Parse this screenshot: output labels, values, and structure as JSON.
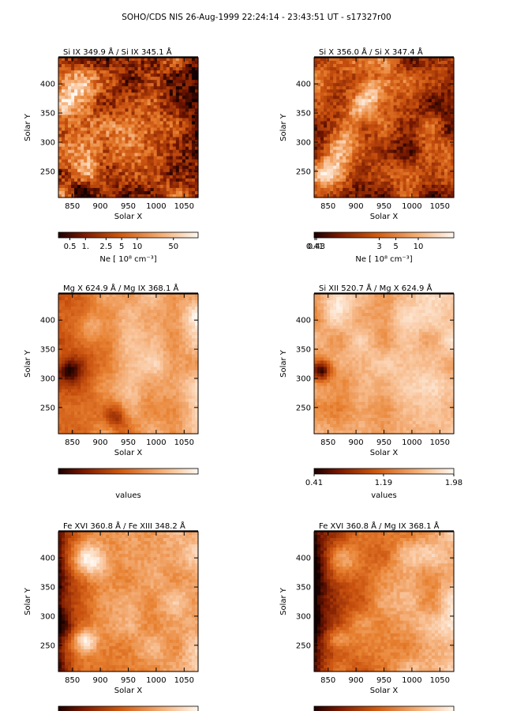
{
  "title": "SOHO/CDS NIS  26-Aug-1999 22:24:14 - 23:43:51 UT - s17327r00",
  "colors": {
    "map_dark": "#220000",
    "map_mid": "#d55e10",
    "map_light": "#fff4ea"
  },
  "chart_data": [
    {
      "type": "heatmap",
      "title": "Si IX  349.9 Å / Si IX  345.1 Å",
      "xlabel": "Solar X",
      "ylabel": "Solar Y",
      "xlim": [
        825,
        1075
      ],
      "ylim": [
        205,
        445
      ],
      "xticks": [
        850,
        900,
        950,
        1000,
        1050
      ],
      "yticks": [
        250,
        300,
        350,
        400
      ],
      "colorbar": {
        "label": "Ne  [ 10⁸ cm⁻³]",
        "log": true,
        "range": [
          0.3,
          150
        ],
        "ticks": [
          0.5,
          1,
          2.5,
          5,
          10,
          50
        ],
        "tick_labels": [
          "0.5",
          "1.",
          "2.5",
          "5",
          "10",
          "50"
        ]
      }
    },
    {
      "type": "heatmap",
      "title": "Si X  356.0 Å / Si X  347.4 Å",
      "xlabel": "Solar X",
      "ylabel": "Solar Y",
      "xlim": [
        825,
        1075
      ],
      "ylim": [
        205,
        445
      ],
      "xticks": [
        850,
        900,
        950,
        1000,
        1050
      ],
      "yticks": [
        250,
        300,
        350,
        400
      ],
      "colorbar": {
        "label": "Ne  [ 10⁸ cm⁻³]",
        "log": true,
        "range": [
          0.4,
          30
        ],
        "ticks": [
          0.41,
          0.43,
          3,
          5,
          10
        ],
        "tick_labels": [
          "0.41",
          "0.43",
          "3",
          "5",
          "10"
        ]
      }
    },
    {
      "type": "heatmap",
      "title": "Mg X  624.9 Å / Mg IX  368.1 Å",
      "xlabel": "Solar X",
      "ylabel": "Solar Y",
      "xlim": [
        825,
        1075
      ],
      "ylim": [
        205,
        445
      ],
      "xticks": [
        850,
        900,
        950,
        1000,
        1050
      ],
      "yticks": [
        250,
        300,
        350,
        400
      ],
      "colorbar": {
        "label": "values",
        "log": false,
        "ticks": [],
        "tick_labels": []
      }
    },
    {
      "type": "heatmap",
      "title": "Si XII  520.7 Å / Mg X  624.9 Å",
      "xlabel": "Solar X",
      "ylabel": "Solar Y",
      "xlim": [
        825,
        1075
      ],
      "ylim": [
        205,
        445
      ],
      "xticks": [
        850,
        900,
        950,
        1000,
        1050
      ],
      "yticks": [
        250,
        300,
        350,
        400
      ],
      "colorbar": {
        "label": "values",
        "log": false,
        "range": [
          0.41,
          1.98
        ],
        "ticks": [
          0.41,
          1.19,
          1.98
        ],
        "tick_labels": [
          "0.41",
          "1.19",
          "1.98"
        ]
      }
    },
    {
      "type": "heatmap",
      "title": "Fe XVI  360.8 Å / Fe XIII  348.2 Å",
      "xlabel": "Solar X",
      "ylabel": "Solar Y",
      "xlim": [
        825,
        1075
      ],
      "ylim": [
        205,
        445
      ],
      "xticks": [
        850,
        900,
        950,
        1000,
        1050
      ],
      "yticks": [
        250,
        300,
        350,
        400
      ],
      "colorbar": {
        "label": "",
        "log": false,
        "ticks": [],
        "tick_labels": []
      }
    },
    {
      "type": "heatmap",
      "title": "Fe XVI  360.8 Å / Mg IX  368.1 Å",
      "xlabel": "Solar X",
      "ylabel": "Solar Y",
      "xlim": [
        825,
        1075
      ],
      "ylim": [
        205,
        445
      ],
      "xticks": [
        850,
        900,
        950,
        1000,
        1050
      ],
      "yticks": [
        250,
        300,
        350,
        400
      ],
      "colorbar": {
        "label": "",
        "log": false,
        "ticks": [],
        "tick_labels": []
      }
    }
  ]
}
